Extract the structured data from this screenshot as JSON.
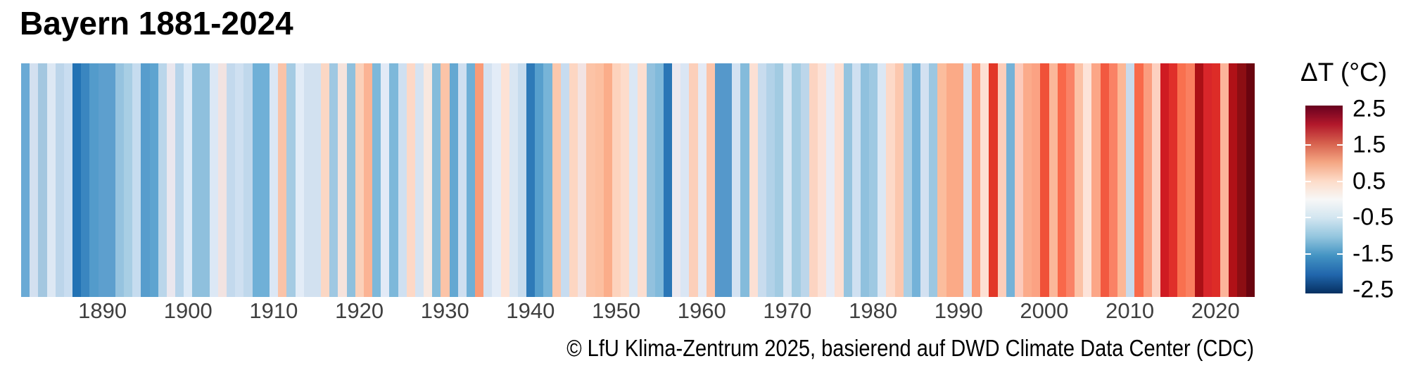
{
  "title": "Bayern 1881-2024",
  "caption": "© LfU Klima-Zentrum 2025, basierend auf DWD Climate Data Center (CDC)",
  "x_axis": {
    "tick_years": [
      1890,
      1900,
      1910,
      1920,
      1930,
      1940,
      1950,
      1960,
      1970,
      1980,
      1990,
      2000,
      2010,
      2020
    ]
  },
  "legend": {
    "title": "ΔT (°C)",
    "tick_values": [
      2.5,
      1.5,
      0.5,
      -0.5,
      -1.5,
      -2.5
    ],
    "tick_labels": [
      "2.5",
      "1.5",
      "0.5",
      "-0.5",
      "-1.5",
      "-2.5"
    ],
    "value_max": 2.6,
    "value_min": -2.6,
    "gradient_top_to_bottom": [
      "#67001f",
      "#b2182b",
      "#d6604d",
      "#f4a582",
      "#fddbc7",
      "#f7f7f7",
      "#d1e5f0",
      "#92c5de",
      "#4393c3",
      "#2166ac",
      "#053061"
    ]
  },
  "chart_data": {
    "type": "heatmap",
    "subtype": "warming-stripes",
    "title": "Bayern 1881-2024",
    "xlabel": "",
    "ylabel": "ΔT (°C)",
    "x_range": [
      1881,
      2024
    ],
    "color_scale_range": [
      -2.6,
      2.6
    ],
    "years_start": 1881,
    "years_end": 2024,
    "stripe_colors": [
      "#6aaad5",
      "#d3e0f0",
      "#a3c7e0",
      "#dde8f4",
      "#bcd5ea",
      "#c9ddf0",
      "#2272b4",
      "#3a86c0",
      "#539bcb",
      "#5d9fce",
      "#5d9fce",
      "#96c3df",
      "#a8cee4",
      "#c6dcef",
      "#579dcd",
      "#5ea4d0",
      "#bad6ea",
      "#eae7ee",
      "#b7d4ea",
      "#dce9f6",
      "#8fc0dd",
      "#8fc0dd",
      "#dce8f5",
      "#f2e3e1",
      "#c3d9ed",
      "#cfe0f1",
      "#c0d8ec",
      "#6fb0d7",
      "#70b0d7",
      "#dbe7f5",
      "#fac3a8",
      "#a5cbe3",
      "#e3ecf7",
      "#d2e1f0",
      "#d2e1f0",
      "#fbd7c4",
      "#9fc8e2",
      "#f6e3dc",
      "#8fc0dd",
      "#fbd0b9",
      "#fbb394",
      "#7db8da",
      "#e2eaf6",
      "#7db8da",
      "#cfe0f1",
      "#fdd8c6",
      "#d5e3f2",
      "#f8e8e0",
      "#85bcdb",
      "#fcc4a8",
      "#64a8d2",
      "#cfdff0",
      "#6fafd6",
      "#fa9b77",
      "#d3e2f1",
      "#e3ecf7",
      "#fde2d5",
      "#d9e6f3",
      "#c7dcee",
      "#2e7ab8",
      "#579fcd",
      "#77b4d8",
      "#fcc8ad",
      "#c7dcf0",
      "#fdd6c2",
      "#f2e3e3",
      "#fcc3a6",
      "#fcbfa0",
      "#fbad8a",
      "#fdd3bd",
      "#fddccb",
      "#dbe7f4",
      "#fcded0",
      "#92c1de",
      "#81badb",
      "#2a76b6",
      "#ece9ef",
      "#dae6f4",
      "#fccfba",
      "#e4eaf5",
      "#fcc4a9",
      "#5598cb",
      "#5598cb",
      "#d3e2f2",
      "#84bbdb",
      "#fce0d4",
      "#c8dcee",
      "#b2d2e8",
      "#a2cbe2",
      "#d8e5f2",
      "#a3cce3",
      "#bcd6ea",
      "#fcd4c2",
      "#fde1d6",
      "#e6ebf6",
      "#fddfd2",
      "#96c4df",
      "#cfe0f1",
      "#90c1de",
      "#9fc9e2",
      "#dbe7f4",
      "#fdd9c8",
      "#fcc7ae",
      "#a9cee5",
      "#74b2d8",
      "#d3e1f1",
      "#9cc7e1",
      "#fbbd9d",
      "#fbaa87",
      "#fbaa87",
      "#d5e3f2",
      "#fb9c79",
      "#fde0d4",
      "#e23727",
      "#fcceba",
      "#74b2d8",
      "#fccabb",
      "#fbab8b",
      "#fba283",
      "#f05138",
      "#fbb79a",
      "#f9684a",
      "#fa8266",
      "#fcc2a6",
      "#fde3d9",
      "#fca687",
      "#f25940",
      "#fa8265",
      "#fcb795",
      "#c8daeb",
      "#f96a4a",
      "#fb9d7e",
      "#fdd0c0",
      "#cf1b22",
      "#e02f2a",
      "#f9704f",
      "#fa7f60",
      "#ab1016",
      "#d8262a",
      "#dd2c27",
      "#fcb49a",
      "#b01117",
      "#8c0e13",
      "#6a040f"
    ],
    "approx_anomaly_degC": [
      -1.3,
      -0.5,
      -0.9,
      -0.4,
      -0.7,
      -0.6,
      -2.0,
      -1.75,
      -1.5,
      -1.4,
      -1.4,
      -1.0,
      -0.85,
      -0.6,
      -1.45,
      -1.35,
      -0.7,
      0.0,
      -0.75,
      -0.4,
      -1.05,
      -1.05,
      -0.4,
      0.15,
      -0.65,
      -0.55,
      -0.65,
      -1.25,
      -1.25,
      -0.45,
      0.85,
      -0.9,
      -0.3,
      -0.5,
      -0.5,
      0.55,
      -0.9,
      0.25,
      -1.0,
      0.65,
      1.0,
      -1.15,
      -0.3,
      -1.15,
      -0.55,
      0.55,
      -0.5,
      0.2,
      -1.1,
      0.8,
      -1.3,
      -0.55,
      -1.25,
      1.2,
      -0.5,
      -0.3,
      0.4,
      -0.45,
      -0.6,
      -1.9,
      -1.45,
      -1.2,
      0.75,
      -0.6,
      0.6,
      0.15,
      0.8,
      0.85,
      1.05,
      0.6,
      0.5,
      -0.45,
      0.45,
      -1.0,
      -1.1,
      -1.95,
      -0.05,
      -0.45,
      0.65,
      -0.3,
      0.8,
      -1.5,
      -1.5,
      -0.5,
      -1.1,
      0.4,
      -0.6,
      -0.8,
      -0.9,
      -0.45,
      -0.9,
      -0.7,
      0.6,
      0.4,
      -0.25,
      0.45,
      -1.0,
      -0.55,
      -1.0,
      -0.9,
      -0.45,
      0.5,
      0.75,
      -0.85,
      -1.2,
      -0.5,
      -0.95,
      0.9,
      1.1,
      1.1,
      -0.5,
      1.2,
      0.45,
      2.0,
      0.65,
      -1.2,
      0.7,
      1.1,
      1.15,
      1.8,
      0.95,
      1.6,
      1.45,
      0.8,
      0.4,
      1.1,
      1.75,
      1.45,
      0.95,
      -0.6,
      1.6,
      1.2,
      0.6,
      2.2,
      2.05,
      1.55,
      1.45,
      2.4,
      2.1,
      2.1,
      0.95,
      2.4,
      2.5,
      2.6
    ]
  }
}
